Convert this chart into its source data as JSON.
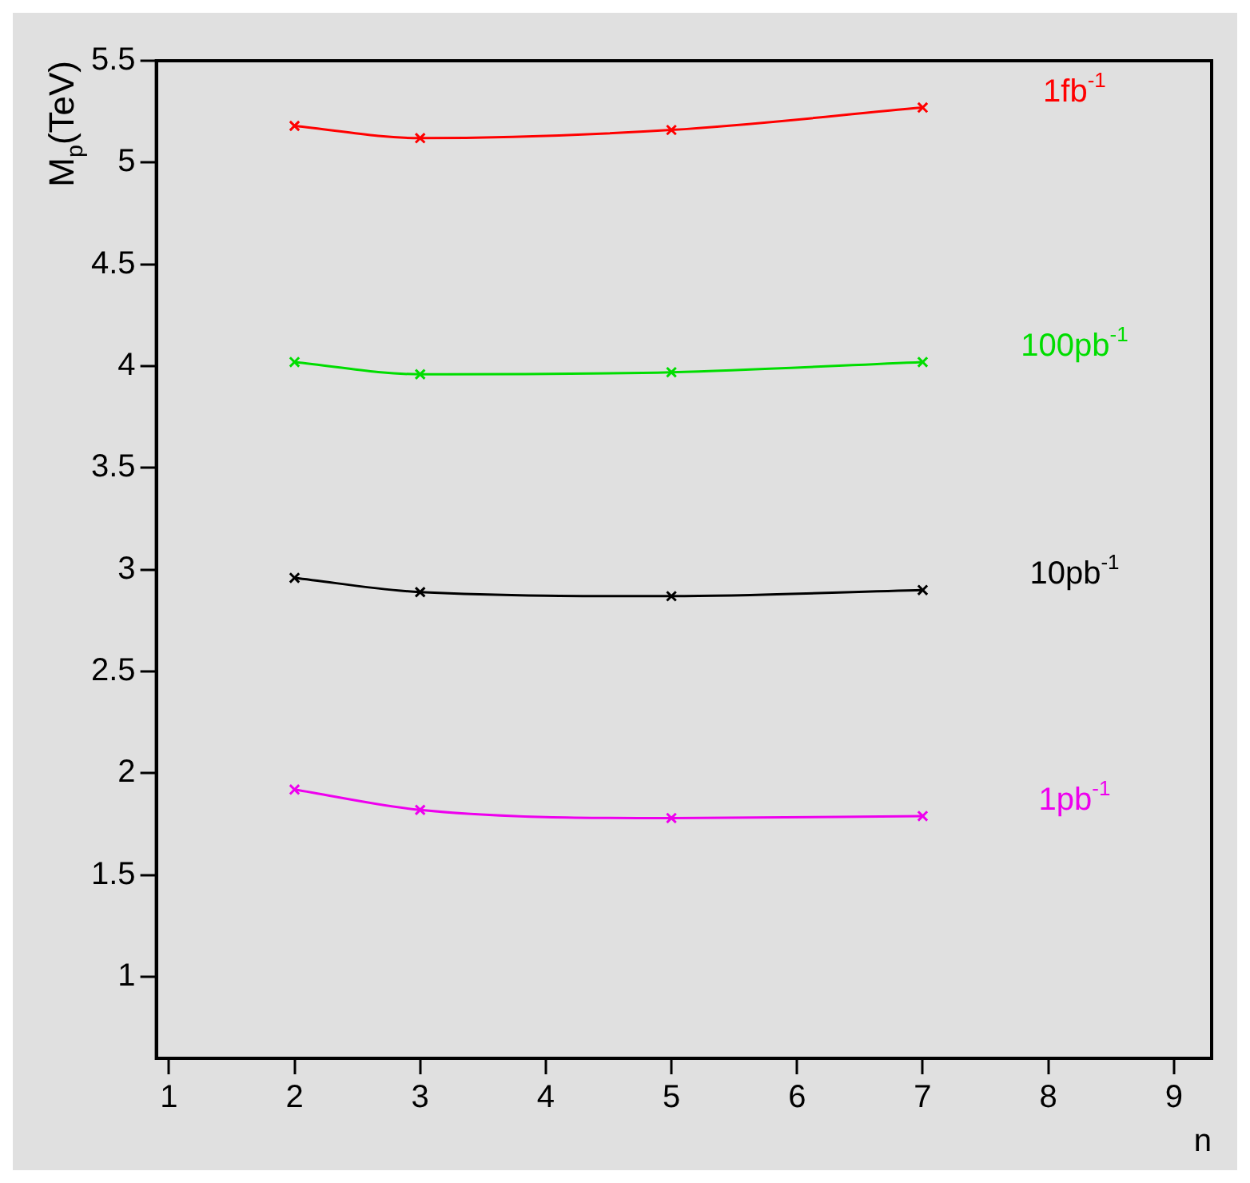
{
  "chart_data": {
    "type": "line",
    "xlabel": "n",
    "ylabel": "M$_{p}$(TeV)",
    "x": [
      2,
      3,
      5,
      7
    ],
    "series": [
      {
        "name": "1fb$^{-1}$",
        "color": "#ff0000",
        "values": [
          5.18,
          5.12,
          5.16,
          5.27
        ]
      },
      {
        "name": "100pb$^{-1}$",
        "color": "#00dd00",
        "values": [
          4.02,
          3.96,
          3.97,
          4.02
        ]
      },
      {
        "name": "10pb$^{-1}$",
        "color": "#000000",
        "values": [
          2.96,
          2.89,
          2.87,
          2.9
        ]
      },
      {
        "name": "1pb$^{-1}$",
        "color": "#ee00ee",
        "values": [
          1.92,
          1.82,
          1.78,
          1.79
        ]
      }
    ],
    "xlim": [
      0.9,
      9.3
    ],
    "xticks": [
      1,
      2,
      3,
      4,
      5,
      6,
      7,
      8,
      9
    ],
    "ylim": [
      0.6,
      5.5
    ],
    "yticks": [
      1,
      1.5,
      2,
      2.5,
      3,
      3.5,
      4,
      4.5,
      5,
      5.5
    ],
    "grid": false,
    "legend": false,
    "marker": "cross",
    "line_style": "solid"
  }
}
